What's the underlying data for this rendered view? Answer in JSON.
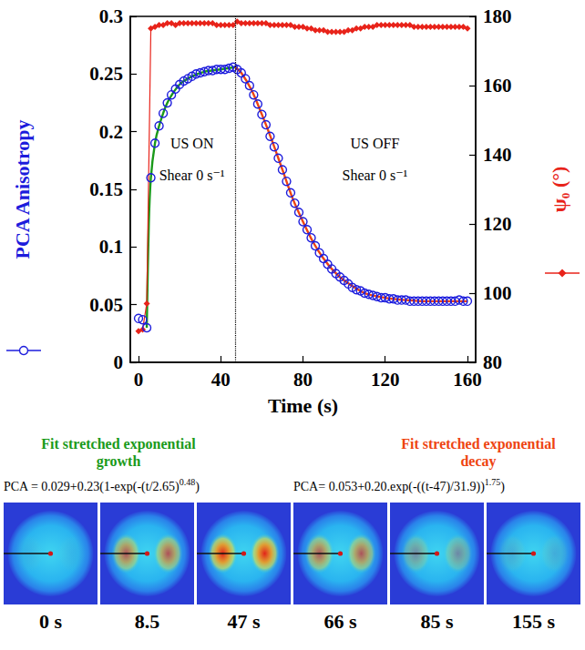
{
  "chart_data": {
    "type": "line",
    "xlabel": "Time (s)",
    "ylabel": "PCA Anisotropy",
    "y2label": "ψ₀ (°)",
    "xlim": [
      -4,
      164
    ],
    "xticks": [
      0,
      40,
      80,
      120,
      160
    ],
    "ylim": [
      0,
      0.3
    ],
    "yticks": [
      0,
      0.05,
      0.1,
      0.15,
      0.2,
      0.25,
      0.3
    ],
    "y2lim": [
      80,
      180
    ],
    "y2ticks": [
      80,
      100,
      120,
      140,
      160,
      180
    ],
    "grid": false,
    "legend": "bottom",
    "series": [
      {
        "type": "scatter",
        "marker": "open_circle",
        "line_style": "none",
        "color": "#1c1cdc",
        "x": [
          0,
          2,
          4,
          6,
          8,
          10,
          12,
          14,
          16,
          18,
          20,
          22,
          24,
          26,
          28,
          30,
          32,
          34,
          36,
          38,
          40,
          42,
          44,
          46,
          48,
          50,
          52,
          54,
          56,
          58,
          60,
          62,
          64,
          66,
          68,
          70,
          72,
          74,
          76,
          78,
          80,
          82,
          84,
          86,
          88,
          90,
          92,
          94,
          96,
          98,
          100,
          102,
          104,
          106,
          108,
          110,
          112,
          114,
          116,
          118,
          120,
          122,
          124,
          126,
          128,
          130,
          132,
          134,
          136,
          138,
          140,
          142,
          144,
          146,
          148,
          150,
          152,
          154,
          156,
          158,
          160
        ],
        "values": [
          0.038,
          0.037,
          0.03,
          0.16,
          0.19,
          0.205,
          0.216,
          0.225,
          0.232,
          0.237,
          0.241,
          0.244,
          0.246,
          0.248,
          0.25,
          0.251,
          0.252,
          0.253,
          0.253,
          0.254,
          0.254,
          0.254,
          0.255,
          0.256,
          0.254,
          0.251,
          0.246,
          0.24,
          0.232,
          0.224,
          0.215,
          0.206,
          0.196,
          0.187,
          0.177,
          0.167,
          0.157,
          0.147,
          0.138,
          0.13,
          0.122,
          0.115,
          0.108,
          0.101,
          0.095,
          0.09,
          0.085,
          0.081,
          0.077,
          0.074,
          0.071,
          0.068,
          0.065,
          0.063,
          0.062,
          0.06,
          0.059,
          0.058,
          0.057,
          0.056,
          0.056,
          0.055,
          0.055,
          0.054,
          0.054,
          0.054,
          0.053,
          0.053,
          0.053,
          0.053,
          0.053,
          0.053,
          0.053,
          0.053,
          0.053,
          0.053,
          0.053,
          0.053,
          0.054,
          0.053,
          0.053
        ]
      },
      {
        "type": "line",
        "marker": "diamond",
        "line_style": "solid",
        "color": "#e8231a",
        "axis": "y2",
        "x": [
          0,
          2,
          4,
          6,
          8,
          10,
          12,
          14,
          16,
          18,
          20,
          22,
          24,
          26,
          28,
          30,
          32,
          34,
          36,
          38,
          40,
          42,
          44,
          46,
          48,
          50,
          52,
          54,
          56,
          58,
          60,
          62,
          64,
          66,
          68,
          70,
          72,
          74,
          76,
          78,
          80,
          82,
          84,
          86,
          88,
          90,
          92,
          94,
          96,
          98,
          100,
          102,
          104,
          106,
          108,
          110,
          112,
          114,
          116,
          118,
          120,
          122,
          124,
          126,
          128,
          130,
          132,
          134,
          136,
          138,
          140,
          142,
          144,
          146,
          148,
          150,
          152,
          154,
          156,
          158,
          160
        ],
        "values": [
          89,
          89.5,
          97,
          176.5,
          177,
          177.5,
          177.5,
          178,
          178,
          177.5,
          178,
          178,
          178,
          178,
          178,
          178,
          178,
          178,
          178,
          177.5,
          177.5,
          177.5,
          177.5,
          177.5,
          178.5,
          178,
          178,
          178,
          178,
          178,
          178,
          178,
          177.5,
          177.5,
          177.5,
          177.5,
          177.5,
          177.5,
          177,
          177,
          177,
          176.5,
          176.5,
          176,
          176,
          176,
          175.5,
          175.5,
          175.5,
          175.5,
          175.5,
          176,
          176,
          176.5,
          176.5,
          177,
          177,
          177,
          177.5,
          177.5,
          177.5,
          177.5,
          177.5,
          177.5,
          177.5,
          177.5,
          177.5,
          177,
          177,
          177,
          177,
          177,
          177,
          177,
          177,
          177,
          177,
          177,
          177,
          177,
          176.5
        ]
      },
      {
        "name": "Fit stretched exponential growth",
        "type": "line",
        "marker": "none",
        "line_style": "solid",
        "color": "#1a9a1a",
        "x": [
          4,
          5,
          6,
          8,
          10,
          14,
          20,
          26,
          32,
          40,
          47
        ],
        "values": [
          0.03,
          0.12,
          0.16,
          0.19,
          0.205,
          0.225,
          0.241,
          0.248,
          0.252,
          0.254,
          0.256
        ],
        "equation": {
          "text": "PCA = 0.029+0.23(1-exp(-(t/2.65)",
          "superscript": "0.48",
          "tail": ")"
        }
      },
      {
        "name": "Fit stretched exponential decay",
        "type": "line",
        "marker": "none",
        "line_style": "solid",
        "color": "#ee4411",
        "x": [
          47,
          50,
          55,
          60,
          65,
          70,
          75,
          80,
          85,
          90,
          95,
          100,
          110,
          120,
          130,
          140,
          150,
          160
        ],
        "values": [
          0.256,
          0.251,
          0.236,
          0.215,
          0.192,
          0.167,
          0.142,
          0.122,
          0.104,
          0.09,
          0.079,
          0.071,
          0.06,
          0.056,
          0.054,
          0.053,
          0.053,
          0.053
        ],
        "equation": {
          "text": "PCA= 0.053+0.20.exp(-((t-47)/31.9))",
          "superscript": "1.75",
          "tail": ")"
        }
      }
    ],
    "vlines": [
      {
        "x": 47,
        "line_style": "dotted"
      }
    ],
    "annotations": [
      {
        "text": "US ON",
        "x": 26,
        "y": 0.19
      },
      {
        "text": "Shear 0 s⁻¹",
        "x": 26,
        "y": 0.162
      },
      {
        "text": "US OFF",
        "x": 115,
        "y": 0.19
      },
      {
        "text": "Shear 0 s⁻¹",
        "x": 115,
        "y": 0.162
      }
    ]
  },
  "images": {
    "labels": [
      "0 s",
      "8.5",
      "47 s",
      "66 s",
      "85 s",
      "155 s"
    ]
  }
}
